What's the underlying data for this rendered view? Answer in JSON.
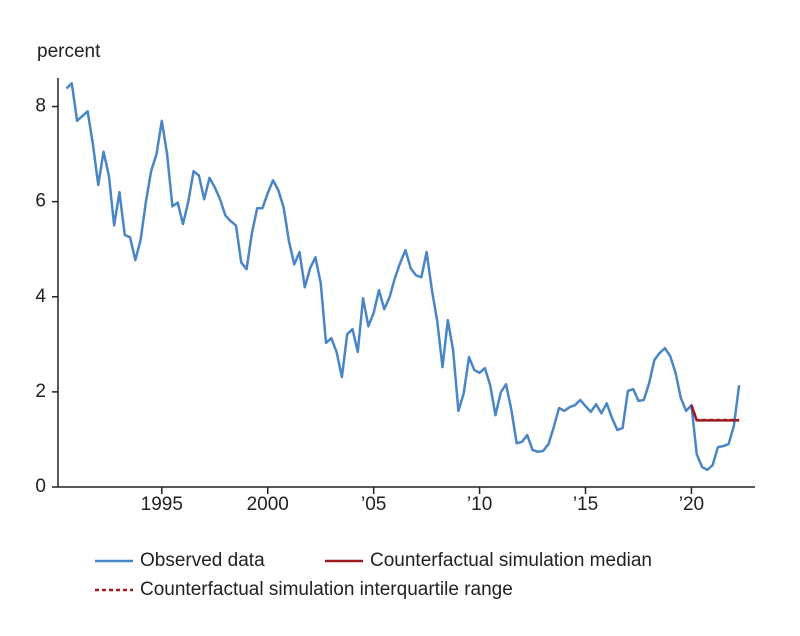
{
  "chart_data": {
    "type": "line",
    "y_label": "percent",
    "x": [
      1990.5,
      1990.75,
      1991,
      1991.25,
      1991.5,
      1991.75,
      1992,
      1992.25,
      1992.5,
      1992.75,
      1993,
      1993.25,
      1993.5,
      1993.75,
      1994,
      1994.25,
      1994.5,
      1994.75,
      1995,
      1995.25,
      1995.5,
      1995.75,
      1996,
      1996.25,
      1996.5,
      1996.75,
      1997,
      1997.25,
      1997.5,
      1997.75,
      1998,
      1998.25,
      1998.5,
      1998.75,
      1999,
      1999.25,
      1999.5,
      1999.75,
      2000,
      2000.25,
      2000.5,
      2000.75,
      2001,
      2001.25,
      2001.5,
      2001.75,
      2002,
      2002.25,
      2002.5,
      2002.75,
      2003,
      2003.25,
      2003.5,
      2003.75,
      2004,
      2004.25,
      2004.5,
      2004.75,
      2005,
      2005.25,
      2005.5,
      2005.75,
      2006,
      2006.25,
      2006.5,
      2006.75,
      2007,
      2007.25,
      2007.5,
      2007.75,
      2008,
      2008.25,
      2008.5,
      2008.75,
      2009,
      2009.25,
      2009.5,
      2009.75,
      2010,
      2010.25,
      2010.5,
      2010.75,
      2011,
      2011.25,
      2011.5,
      2011.75,
      2012,
      2012.25,
      2012.5,
      2012.75,
      2013,
      2013.25,
      2013.5,
      2013.75,
      2014,
      2014.25,
      2014.5,
      2014.75,
      2015,
      2015.25,
      2015.5,
      2015.75,
      2016,
      2016.25,
      2016.5,
      2016.75,
      2017,
      2017.25,
      2017.5,
      2017.75,
      2018,
      2018.25,
      2018.5,
      2018.75,
      2019,
      2019.25,
      2019.5,
      2019.75,
      2020,
      2020.25,
      2020.5,
      2020.75,
      2021,
      2021.25,
      2021.5,
      2021.75,
      2022,
      2022.25
    ],
    "series": [
      {
        "name": "Observed data",
        "color": "#4a86c5",
        "style": "solid",
        "values": [
          8.38,
          8.49,
          7.7,
          7.8,
          7.9,
          7.2,
          6.35,
          7.05,
          6.55,
          5.5,
          6.2,
          5.3,
          5.25,
          4.77,
          5.2,
          6.0,
          6.65,
          7.0,
          7.7,
          7.0,
          5.9,
          5.98,
          5.53,
          6.0,
          6.64,
          6.55,
          6.05,
          6.5,
          6.3,
          6.05,
          5.71,
          5.59,
          5.5,
          4.72,
          4.58,
          5.33,
          5.86,
          5.86,
          6.18,
          6.45,
          6.24,
          5.88,
          5.17,
          4.68,
          4.94,
          4.2,
          4.6,
          4.83,
          4.29,
          3.03,
          3.13,
          2.84,
          2.31,
          3.21,
          3.32,
          2.84,
          3.97,
          3.38,
          3.66,
          4.14,
          3.74,
          3.99,
          4.39,
          4.71,
          4.98,
          4.6,
          4.45,
          4.41,
          4.94,
          4.14,
          3.49,
          2.52,
          3.51,
          2.88,
          1.6,
          1.97,
          2.73,
          2.46,
          2.4,
          2.5,
          2.14,
          1.51,
          1.99,
          2.16,
          1.62,
          0.92,
          0.95,
          1.09,
          0.78,
          0.74,
          0.76,
          0.9,
          1.26,
          1.66,
          1.6,
          1.68,
          1.72,
          1.83,
          1.7,
          1.58,
          1.74,
          1.55,
          1.76,
          1.45,
          1.2,
          1.24,
          2.02,
          2.06,
          1.81,
          1.83,
          2.18,
          2.67,
          2.82,
          2.92,
          2.75,
          2.4,
          1.87,
          1.6,
          1.72,
          0.69,
          0.42,
          0.36,
          0.46,
          0.84,
          0.86,
          0.9,
          1.28,
          2.14
        ]
      },
      {
        "name": "Counterfactual simulation median",
        "color": "#9b1b1e",
        "style": "solid",
        "x": [
          2020,
          2020.25,
          2022.25
        ],
        "values": [
          1.72,
          1.4,
          1.4
        ]
      },
      {
        "name": "Counterfactual simulation interquartile range",
        "color": "#9b1b1e",
        "style": "dashed",
        "x": [
          2020,
          2020.25,
          2022.25
        ],
        "values": [
          1.72,
          1.41,
          1.41
        ]
      }
    ],
    "xlim": [
      1990.1,
      2023
    ],
    "ylim": [
      0,
      8.6
    ],
    "xticks": [
      {
        "value": 1995,
        "label": "1995"
      },
      {
        "value": 2000,
        "label": "2000"
      },
      {
        "value": 2005,
        "label": "’05"
      },
      {
        "value": 2010,
        "label": "’10"
      },
      {
        "value": 2015,
        "label": "’15"
      },
      {
        "value": 2020,
        "label": "’20"
      }
    ],
    "yticks": [
      0,
      2,
      4,
      6,
      8
    ]
  }
}
